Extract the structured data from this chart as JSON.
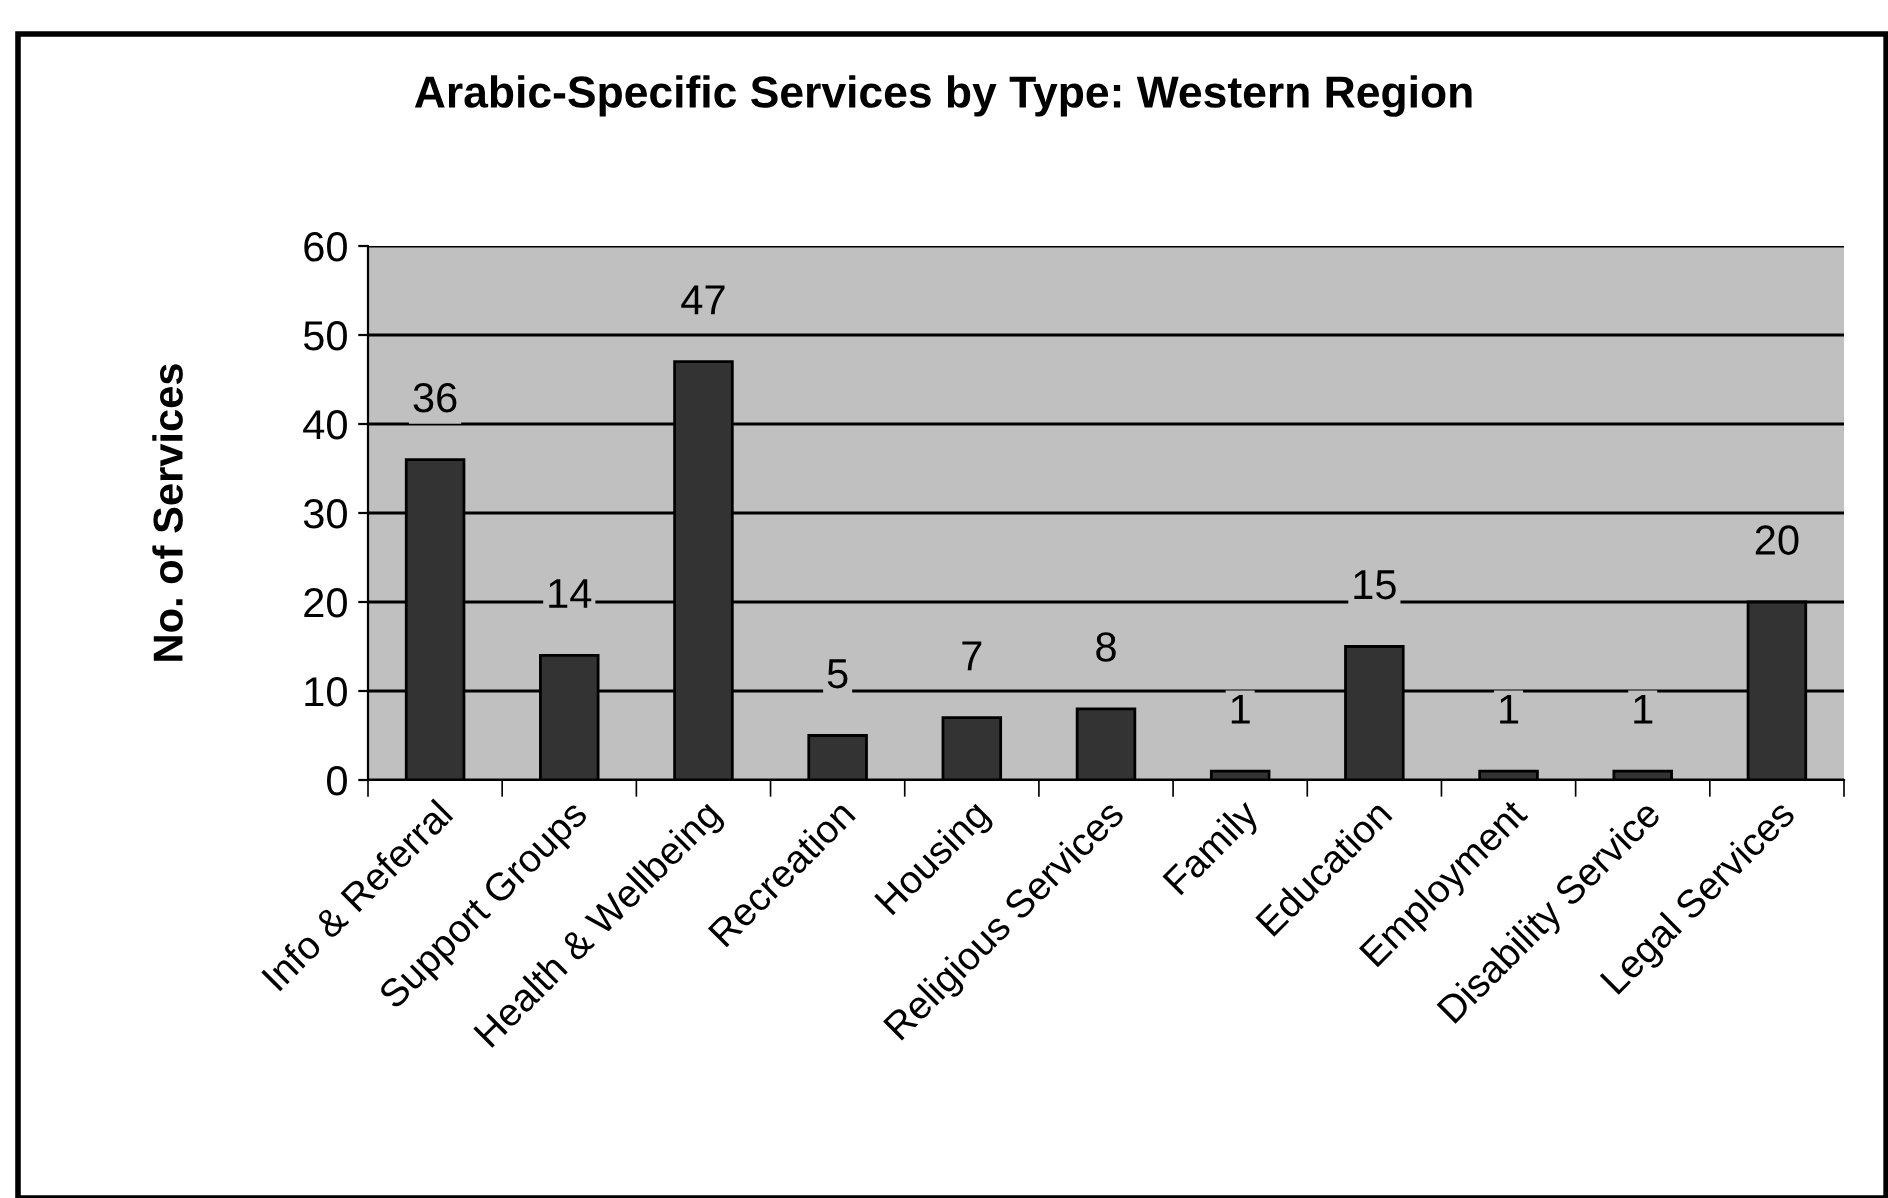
{
  "chart_data": {
    "type": "bar",
    "title": "Arabic-Specific Services by Type: Western Region",
    "ylabel": "No. of Services",
    "categories": [
      "Info & Referral",
      "Support Groups",
      "Health & Wellbeing",
      "Recreation",
      "Housing",
      "Religious Services",
      "Family",
      "Education",
      "Employment",
      "Disability Service",
      "Legal Services"
    ],
    "values": [
      36,
      14,
      47,
      5,
      7,
      8,
      1,
      15,
      1,
      1,
      20
    ],
    "color": "#333333",
    "ylim": [
      0,
      60
    ],
    "yticks": [
      0,
      10,
      20,
      30,
      40,
      50,
      60
    ],
    "grid": "y",
    "data_labels": true
  }
}
